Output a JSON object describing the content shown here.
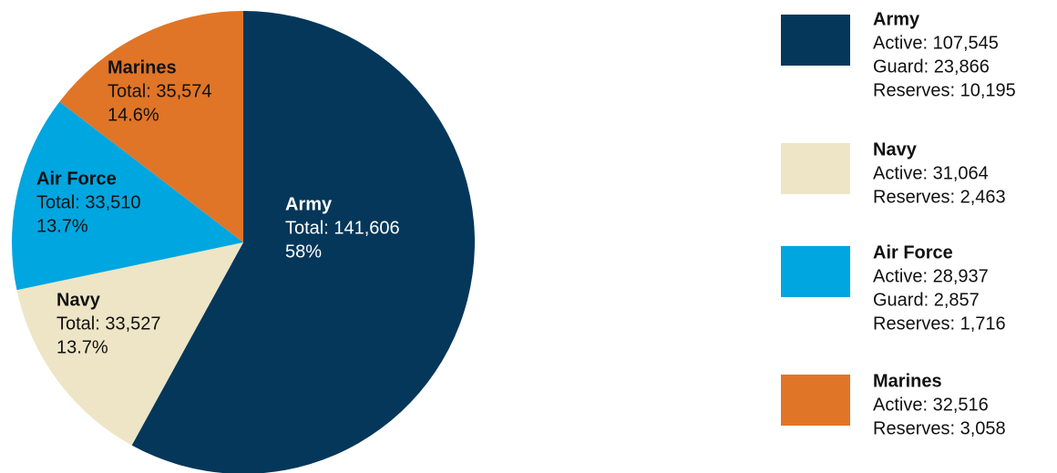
{
  "chart_data": {
    "type": "pie",
    "categories": [
      "Army",
      "Navy",
      "Air Force",
      "Marines"
    ],
    "values": [
      58,
      13.7,
      13.7,
      14.6
    ],
    "value_labels": [
      "58%",
      "13.7%",
      "13.7%",
      "14.6%"
    ],
    "totals": [
      {
        "value": 141606,
        "label": "Total: 141,606"
      },
      {
        "value": 33527,
        "label": "Total: 33,527"
      },
      {
        "value": 33510,
        "label": "Total: 33,510"
      },
      {
        "value": 35574,
        "label": "Total: 35,574"
      }
    ],
    "colors": [
      "#04375a",
      "#ede5c5",
      "#00a6df",
      "#e07527"
    ],
    "legend_details": [
      [
        "Active: 107,545",
        "Guard: 23,866",
        "Reserves: 10,195"
      ],
      [
        "Active: 31,064",
        "Reserves: 2,463"
      ],
      [
        "Active: 28,937",
        "Guard: 2,857",
        "Reserves: 1,716"
      ],
      [
        "Active: 32,516",
        "Reserves: 3,058"
      ]
    ]
  }
}
